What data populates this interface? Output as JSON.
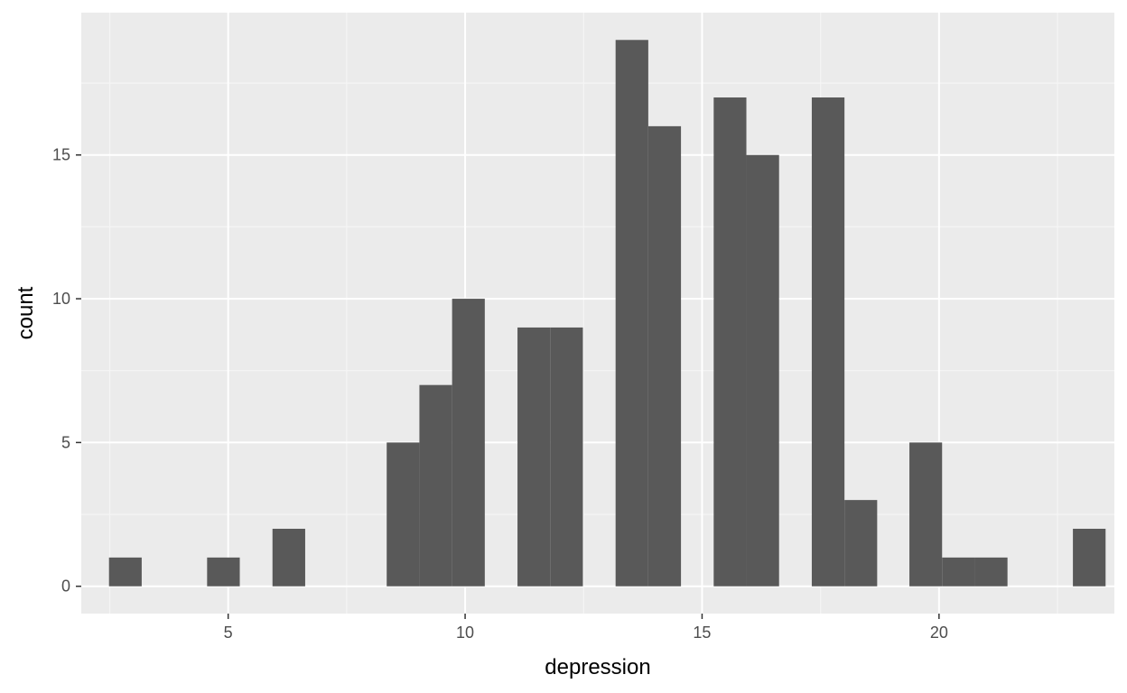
{
  "chart_data": {
    "type": "bar",
    "subtype": "histogram",
    "xlabel": "depression",
    "ylabel": "count",
    "xlim": [
      1.9,
      23.7
    ],
    "ylim": [
      -0.95,
      19.95
    ],
    "binwidth": 0.6897,
    "x_ticks": [
      5,
      10,
      15,
      20
    ],
    "y_ticks": [
      0,
      5,
      10,
      15
    ],
    "grid": true,
    "colors": {
      "panel_background": "#ebebeb",
      "grid_major": "#ffffff",
      "grid_minor": "#f5f5f5",
      "bar_fill": "#595959",
      "tick_text": "#4d4d4d",
      "tick_mark": "#333333",
      "title_text": "#000000"
    },
    "bins": [
      {
        "x": 2.83,
        "count": 1
      },
      {
        "x": 4.9,
        "count": 1
      },
      {
        "x": 6.28,
        "count": 2
      },
      {
        "x": 8.69,
        "count": 5
      },
      {
        "x": 9.38,
        "count": 7
      },
      {
        "x": 10.07,
        "count": 10
      },
      {
        "x": 11.45,
        "count": 9
      },
      {
        "x": 12.14,
        "count": 9
      },
      {
        "x": 13.52,
        "count": 19
      },
      {
        "x": 14.21,
        "count": 16
      },
      {
        "x": 15.59,
        "count": 17
      },
      {
        "x": 16.28,
        "count": 15
      },
      {
        "x": 17.66,
        "count": 17
      },
      {
        "x": 18.35,
        "count": 3
      },
      {
        "x": 19.72,
        "count": 5
      },
      {
        "x": 20.41,
        "count": 1
      },
      {
        "x": 21.1,
        "count": 1
      },
      {
        "x": 23.17,
        "count": 2
      }
    ]
  }
}
